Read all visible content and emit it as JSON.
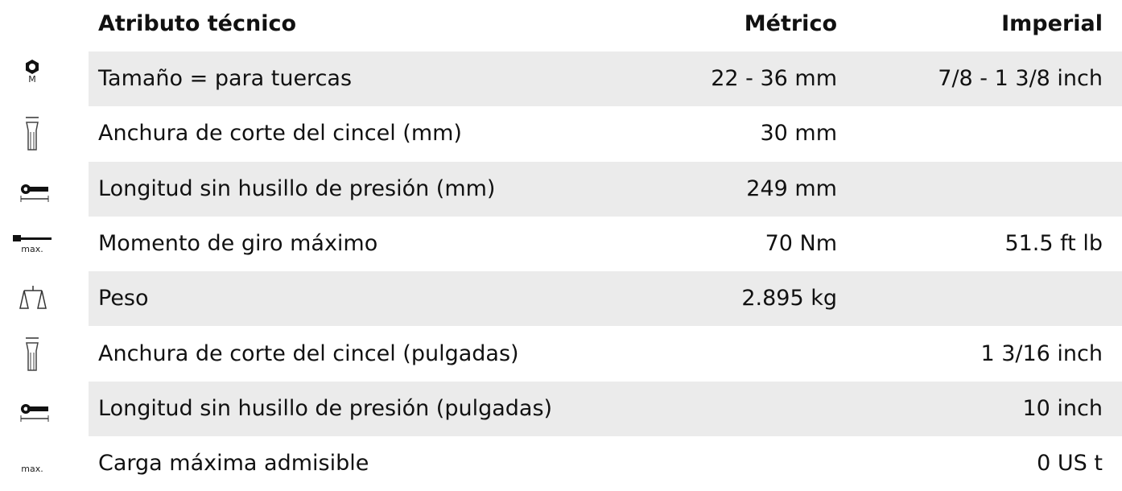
{
  "table": {
    "header": [
      "Atributo técnico",
      "Métrico",
      "Imperial"
    ],
    "rows": [
      {
        "icon_text": "M",
        "cells": [
          "Tamaño = para tuercas",
          "22 - 36 mm",
          "7/8 - 1 3/8 inch"
        ]
      },
      {
        "cells": [
          "Anchura de corte del cincel (mm)",
          "30 mm",
          null
        ]
      },
      {
        "cells": [
          "Longitud sin husillo de presión (mm)",
          "249 mm",
          null
        ]
      },
      {
        "icon_text": "max.",
        "cells": [
          "Momento de giro máximo",
          "70 Nm",
          "51.5 ft lb"
        ]
      },
      {
        "cells": [
          "Peso",
          "2.895 kg",
          null
        ]
      },
      {
        "cells": [
          "Anchura de corte del cincel (pulgadas)",
          null,
          "1 3/16 inch"
        ]
      },
      {
        "cells": [
          "Longitud sin husillo de presión (pulgadas)",
          null,
          "10 inch"
        ]
      },
      {
        "icon_text": "max.",
        "cells": [
          "Carga máxima admisible",
          null,
          "0 US t"
        ]
      }
    ]
  }
}
